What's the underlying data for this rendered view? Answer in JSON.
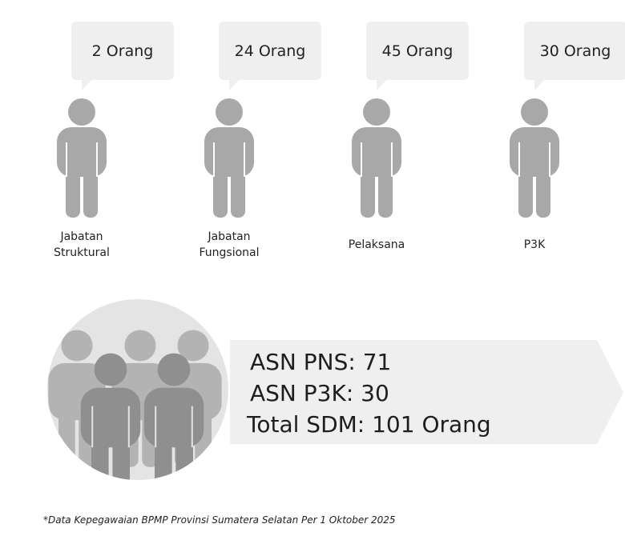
{
  "groups": [
    {
      "count_label": "2 Orang",
      "name_lines": [
        "Jabatan",
        "Struktural"
      ]
    },
    {
      "count_label": "24 Orang",
      "name_lines": [
        "Jabatan",
        "Fungsional"
      ]
    },
    {
      "count_label": "45 Orang",
      "name_lines": [
        "Pelaksana"
      ]
    },
    {
      "count_label": "30 Orang",
      "name_lines": [
        "P3K"
      ]
    }
  ],
  "summary": {
    "lines": [
      "ASN PNS: 71",
      "ASN P3K: 30",
      "Total SDM: 101 Orang"
    ]
  },
  "footnote": "*Data Kepegawaian BPMP Provinsi Sumatera Selatan Per 1 Oktober 2025"
}
